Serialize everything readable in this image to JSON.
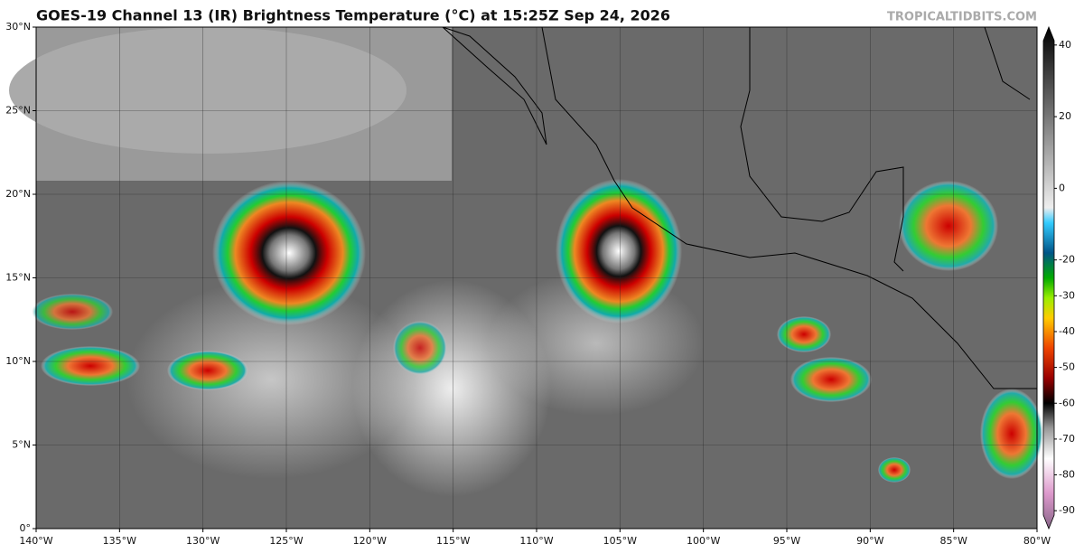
{
  "header": {
    "title": "GOES-19 Channel 13 (IR) Brightness Temperature (°C) at 15:25Z Sep 24, 2026",
    "source": "TROPICALTIDBITS.COM"
  },
  "map": {
    "xlim": [
      -140,
      -80
    ],
    "ylim": [
      0,
      30
    ],
    "xticks": [
      {
        "value": -140,
        "label": "140°W"
      },
      {
        "value": -135,
        "label": "135°W"
      },
      {
        "value": -130,
        "label": "130°W"
      },
      {
        "value": -125,
        "label": "125°W"
      },
      {
        "value": -120,
        "label": "120°W"
      },
      {
        "value": -115,
        "label": "115°W"
      },
      {
        "value": -110,
        "label": "110°W"
      },
      {
        "value": -105,
        "label": "105°W"
      },
      {
        "value": -100,
        "label": "100°W"
      },
      {
        "value": -95,
        "label": "95°W"
      },
      {
        "value": -90,
        "label": "90°W"
      },
      {
        "value": -85,
        "label": "85°W"
      },
      {
        "value": -80,
        "label": "80°W"
      }
    ],
    "yticks": [
      {
        "value": 0,
        "label": "0°"
      },
      {
        "value": 5,
        "label": "5°N"
      },
      {
        "value": 10,
        "label": "10°N"
      },
      {
        "value": 15,
        "label": "15°N"
      },
      {
        "value": 20,
        "label": "20°N"
      },
      {
        "value": 25,
        "label": "25°N"
      },
      {
        "value": 30,
        "label": "30°N"
      }
    ]
  },
  "colorbar": {
    "lim": [
      -95,
      45
    ],
    "ticks": [
      40,
      20,
      0,
      -20,
      -30,
      -40,
      -50,
      -60,
      -70,
      -80,
      -90
    ]
  }
}
